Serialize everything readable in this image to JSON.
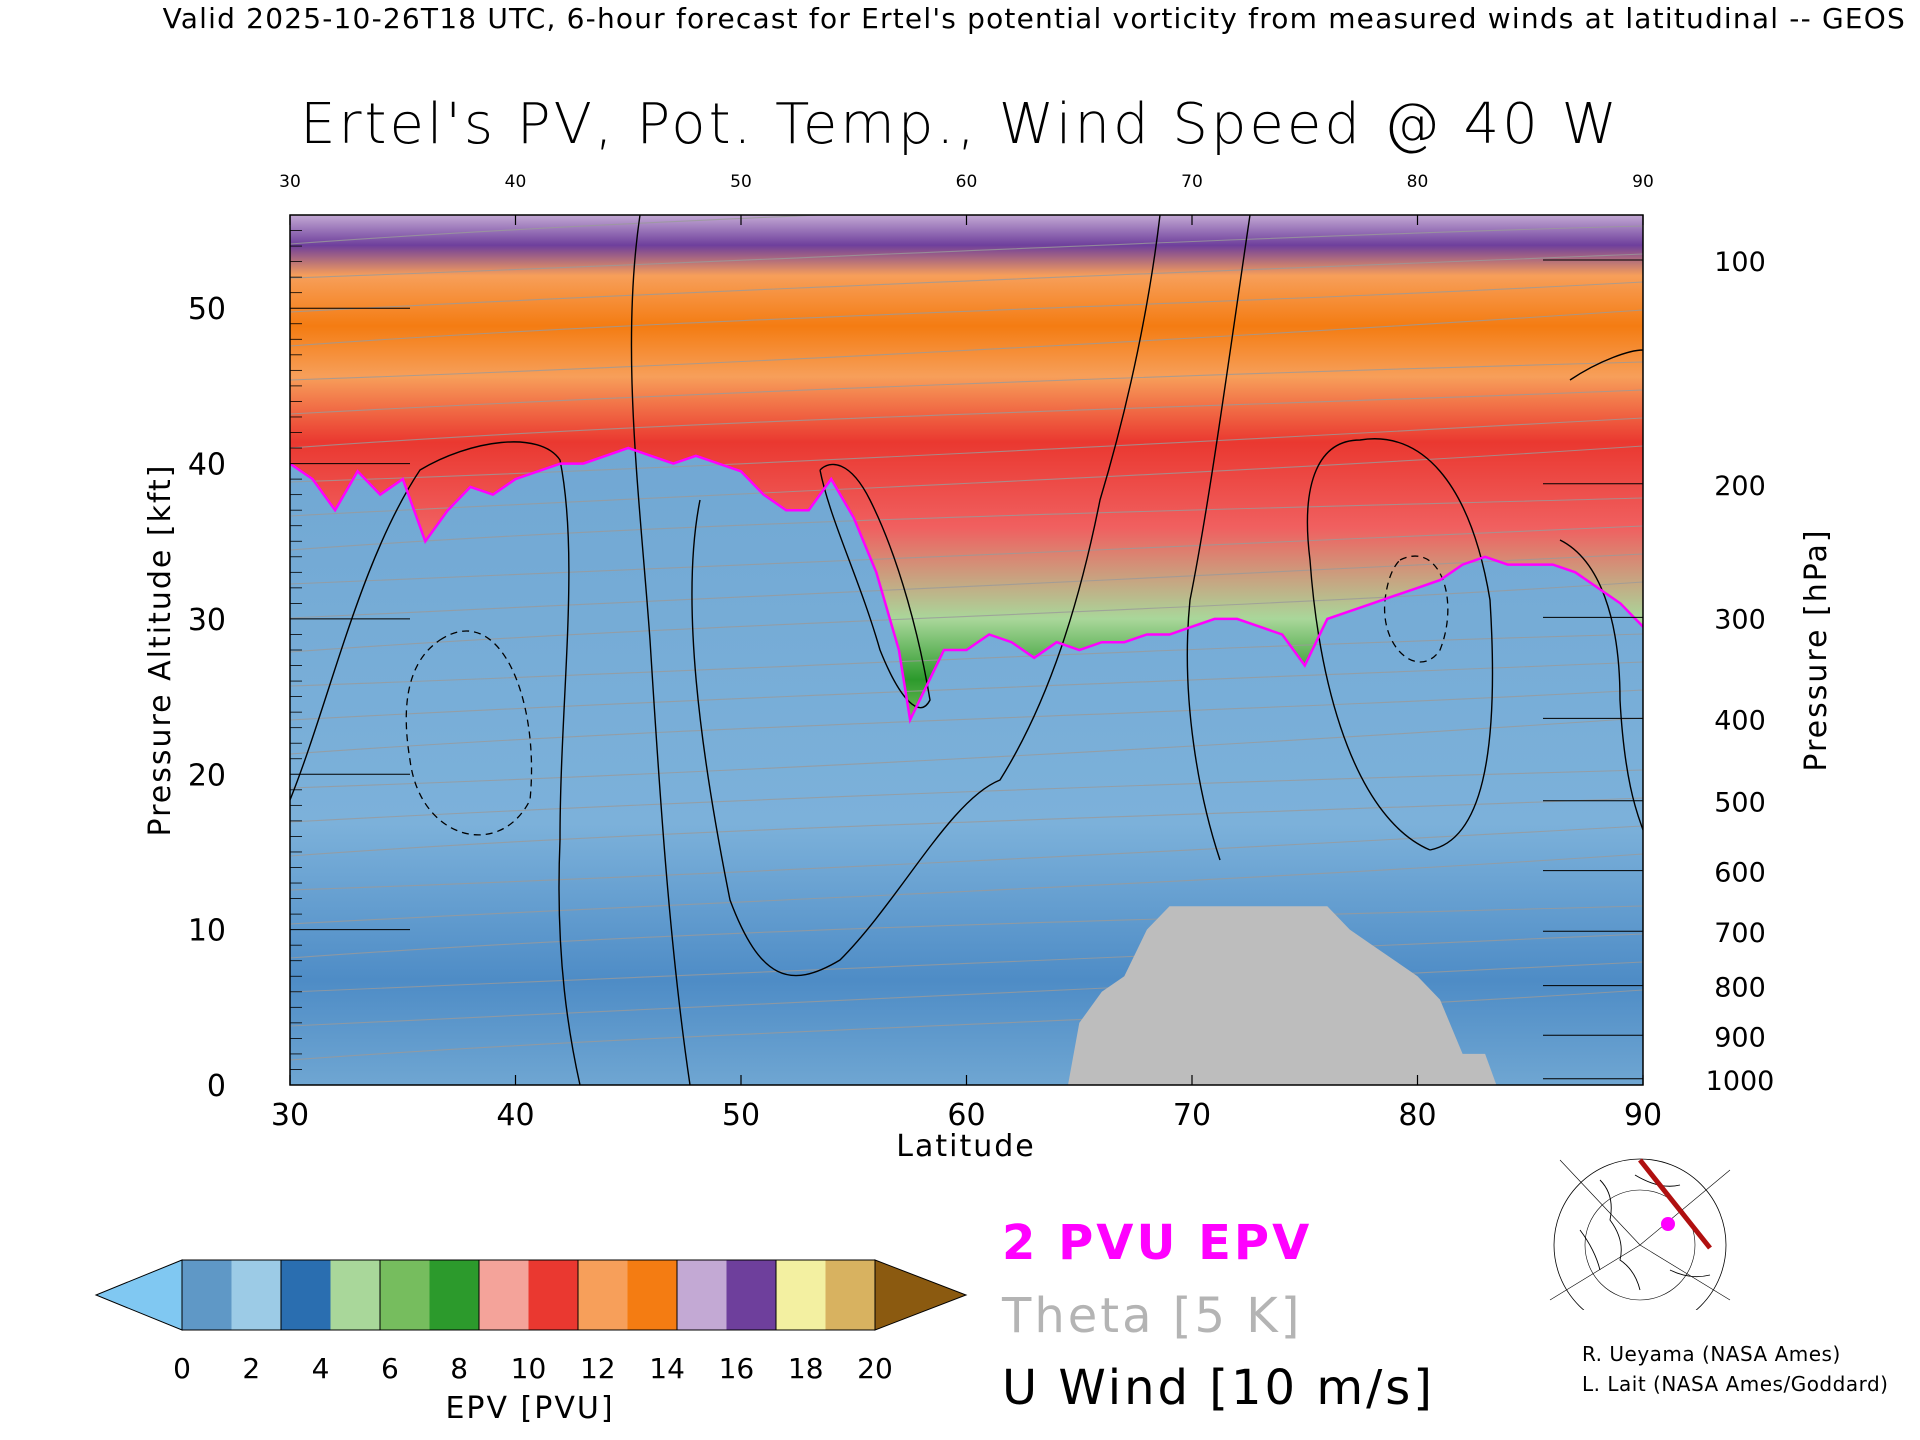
{
  "header": {
    "title": "Valid 2025-10-26T18 UTC, 6-hour forecast for Ertel's potential vorticity from measured winds at latitudinal -- GEOS"
  },
  "chart_data": {
    "type": "heatmap",
    "title": "Ertel's PV, Pot. Temp., Wind Speed @ 40 W",
    "xlabel": "Latitude",
    "ylabel": "Pressure Altitude [kft]",
    "ylabel_right": "Pressure [hPa]",
    "xlim": [
      30,
      90
    ],
    "ylim": [
      0,
      56
    ],
    "x_ticks": [
      "30",
      "40",
      "50",
      "60",
      "70",
      "80",
      "90"
    ],
    "y_ticks": [
      "0",
      "10",
      "20",
      "30",
      "40",
      "50"
    ],
    "pressure_ticks": [
      {
        "label": "100",
        "kft": 53.1
      },
      {
        "label": "200",
        "kft": 38.7
      },
      {
        "label": "300",
        "kft": 30.1
      },
      {
        "label": "400",
        "kft": 23.6
      },
      {
        "label": "500",
        "kft": 18.3
      },
      {
        "label": "600",
        "kft": 13.8
      },
      {
        "label": "700",
        "kft": 9.9
      },
      {
        "label": "800",
        "kft": 6.4
      },
      {
        "label": "900",
        "kft": 3.2
      },
      {
        "label": "1000",
        "kft": 0.4
      }
    ],
    "tropopause_2pvu_kft": [
      [
        30,
        40
      ],
      [
        31,
        39
      ],
      [
        32,
        37
      ],
      [
        33,
        39.5
      ],
      [
        34,
        38
      ],
      [
        35,
        39
      ],
      [
        36,
        35
      ],
      [
        37,
        37
      ],
      [
        38,
        38.5
      ],
      [
        39,
        38
      ],
      [
        40,
        39
      ],
      [
        41,
        39.5
      ],
      [
        42,
        40
      ],
      [
        43,
        40
      ],
      [
        44,
        40.5
      ],
      [
        45,
        41
      ],
      [
        46,
        40.5
      ],
      [
        47,
        40
      ],
      [
        48,
        40.5
      ],
      [
        49,
        40
      ],
      [
        50,
        39.5
      ],
      [
        51,
        38
      ],
      [
        52,
        37
      ],
      [
        53,
        37
      ],
      [
        54,
        39
      ],
      [
        55,
        36.5
      ],
      [
        56,
        33
      ],
      [
        57,
        28
      ],
      [
        57.5,
        23.5
      ],
      [
        58,
        25
      ],
      [
        59,
        28
      ],
      [
        60,
        28
      ],
      [
        61,
        29
      ],
      [
        62,
        28.5
      ],
      [
        63,
        27.5
      ],
      [
        64,
        28.5
      ],
      [
        65,
        28
      ],
      [
        66,
        28.5
      ],
      [
        67,
        28.5
      ],
      [
        68,
        29
      ],
      [
        69,
        29
      ],
      [
        70,
        29.5
      ],
      [
        71,
        30
      ],
      [
        72,
        30
      ],
      [
        73,
        29.5
      ],
      [
        74,
        29
      ],
      [
        75,
        27
      ],
      [
        76,
        30
      ],
      [
        77,
        30.5
      ],
      [
        78,
        31
      ],
      [
        79,
        31.5
      ],
      [
        80,
        32
      ],
      [
        81,
        32.5
      ],
      [
        82,
        33.5
      ],
      [
        83,
        34
      ],
      [
        84,
        33.5
      ],
      [
        85,
        33.5
      ],
      [
        86,
        33.5
      ],
      [
        87,
        33
      ],
      [
        88,
        32
      ],
      [
        89,
        31
      ],
      [
        90,
        29.5
      ]
    ],
    "surface_kft": [
      [
        64.5,
        0
      ],
      [
        65,
        4
      ],
      [
        66,
        6
      ],
      [
        67,
        7
      ],
      [
        68,
        10
      ],
      [
        69,
        11.5
      ],
      [
        76,
        11.5
      ],
      [
        77,
        10
      ],
      [
        78,
        9
      ],
      [
        79,
        8
      ],
      [
        80,
        7
      ],
      [
        81,
        5.5
      ],
      [
        82,
        2
      ],
      [
        83,
        2
      ],
      [
        83.5,
        0
      ]
    ],
    "colorbar": {
      "label": "EPV [PVU]",
      "ticks": [
        "0",
        "2",
        "4",
        "6",
        "8",
        "10",
        "12",
        "14",
        "16",
        "18",
        "20"
      ],
      "colors": [
        "#5f98c6",
        "#9ccbe6",
        "#2a6eb0",
        "#a9d79a",
        "#76bd5e",
        "#2c9a2c",
        "#f4a39a",
        "#ea3830",
        "#f79f5a",
        "#f47c12",
        "#c3a9d4",
        "#6e3f9c",
        "#f3f0a1",
        "#d8b260"
      ],
      "under_color": "#80c8f2",
      "over_color": "#8b5a10"
    },
    "legend": [
      {
        "label": "2 PVU EPV",
        "color": "#ff00ff"
      },
      {
        "label": "Theta [5 K]",
        "color": "#b4b4b4"
      },
      {
        "label": "U Wind [10 m/s]",
        "color": "#000000"
      }
    ]
  },
  "credits": {
    "line1": "R. Ueyama (NASA Ames)",
    "line2": "L. Lait (NASA Ames/Goddard)"
  }
}
